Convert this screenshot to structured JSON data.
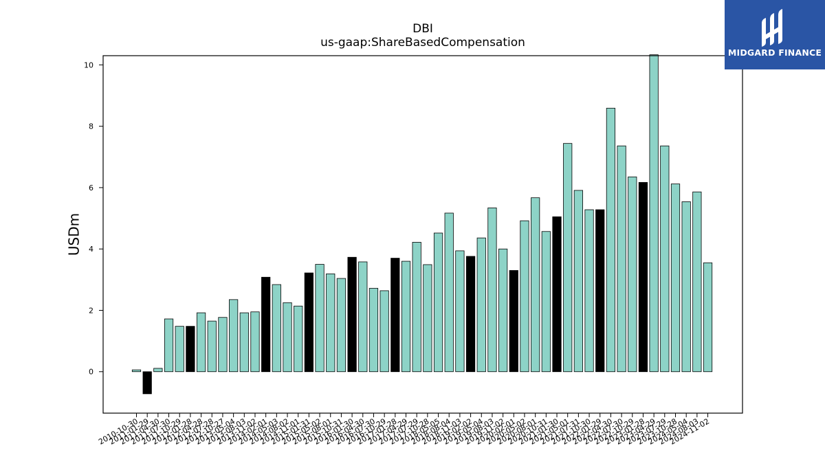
{
  "chart_data": {
    "type": "bar",
    "title": "DBI",
    "subtitle": "us-gaap:ShareBasedCompensation",
    "xlabel": "",
    "ylabel": "USDm",
    "ylim": [
      -1.35,
      10.3
    ],
    "yticks": [
      0,
      2,
      4,
      6,
      8,
      10
    ],
    "grid": false,
    "colors": {
      "quarter": "#8dd3c7",
      "fiscal_year": "#000000",
      "edge": "#000000"
    },
    "categories": [
      "2010-10-30",
      "2011-01-29",
      "2011-04-30",
      "2011-07-30",
      "2011-10-29",
      "2012-01-28",
      "2012-04-28",
      "2012-07-28",
      "2012-10-27",
      "2013-05-04",
      "2013-08-03",
      "2013-11-02",
      "2014-02-01",
      "2014-05-03",
      "2014-08-02",
      "2014-11-01",
      "2015-01-31",
      "2015-05-02",
      "2015-08-01",
      "2015-10-31",
      "2016-01-30",
      "2016-04-30",
      "2016-07-30",
      "2016-10-29",
      "2017-01-28",
      "2017-04-29",
      "2017-07-29",
      "2017-10-28",
      "2018-05-05",
      "2018-08-04",
      "2018-11-03",
      "2019-02-02",
      "2019-05-04",
      "2019-08-03",
      "2019-11-02",
      "2020-02-01",
      "2020-05-02",
      "2020-08-01",
      "2020-10-31",
      "2021-01-30",
      "2021-05-01",
      "2021-07-31",
      "2021-10-30",
      "2022-01-29",
      "2022-04-30",
      "2022-07-30",
      "2022-10-29",
      "2023-01-28",
      "2023-04-29",
      "2023-07-29",
      "2023-10-28",
      "2024-05-04",
      "2024-08-03",
      "2024-11-02"
    ],
    "values": [
      0.06,
      -0.72,
      0.11,
      1.72,
      1.48,
      1.48,
      1.92,
      1.65,
      1.77,
      2.35,
      1.92,
      1.95,
      3.08,
      2.84,
      2.25,
      2.14,
      3.22,
      3.5,
      3.19,
      3.04,
      3.73,
      3.58,
      2.72,
      2.64,
      3.7,
      3.6,
      4.22,
      3.49,
      4.52,
      5.17,
      3.94,
      3.76,
      4.36,
      5.34,
      4.0,
      3.3,
      4.92,
      5.67,
      4.57,
      5.05,
      7.44,
      5.91,
      5.28,
      5.28,
      8.59,
      7.36,
      6.35,
      6.17,
      10.33,
      7.36,
      6.12,
      5.54,
      5.86,
      3.55
    ],
    "fiscal_year_flags": [
      false,
      true,
      false,
      false,
      false,
      true,
      false,
      false,
      false,
      false,
      false,
      false,
      true,
      false,
      false,
      false,
      true,
      false,
      false,
      false,
      true,
      false,
      false,
      false,
      true,
      false,
      false,
      false,
      false,
      false,
      false,
      true,
      false,
      false,
      false,
      true,
      false,
      false,
      false,
      true,
      false,
      false,
      false,
      true,
      false,
      false,
      false,
      true,
      false,
      false,
      false,
      false,
      false,
      false
    ]
  },
  "logo": {
    "icon": "midgard-logo-icon",
    "text": "MIDGARD FINANCE"
  }
}
